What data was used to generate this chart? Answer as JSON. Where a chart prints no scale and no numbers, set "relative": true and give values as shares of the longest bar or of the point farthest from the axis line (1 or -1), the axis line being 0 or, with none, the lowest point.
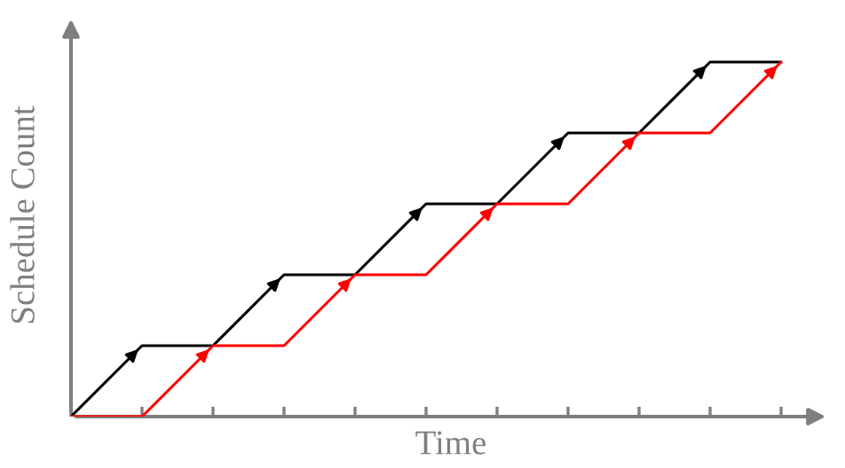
{
  "chart_data": {
    "type": "line",
    "xlabel": "Time",
    "ylabel": "Schedule Count",
    "relative": true,
    "grid": false,
    "legend": false,
    "marker": "none",
    "line_style": "solid",
    "categories": [
      null,
      null,
      null,
      null,
      null,
      null,
      null,
      null,
      null,
      null,
      null
    ],
    "series": [
      {
        "color": "#000000",
        "values": [
          0,
          0.2,
          0.2,
          0.4,
          0.4,
          0.6,
          0.6,
          0.8,
          0.8,
          1,
          1
        ]
      },
      {
        "color": "#ff0000",
        "values": [
          0,
          0,
          0.2,
          0.2,
          0.4,
          0.4,
          0.6,
          0.6,
          0.8,
          0.8,
          1
        ]
      }
    ]
  }
}
